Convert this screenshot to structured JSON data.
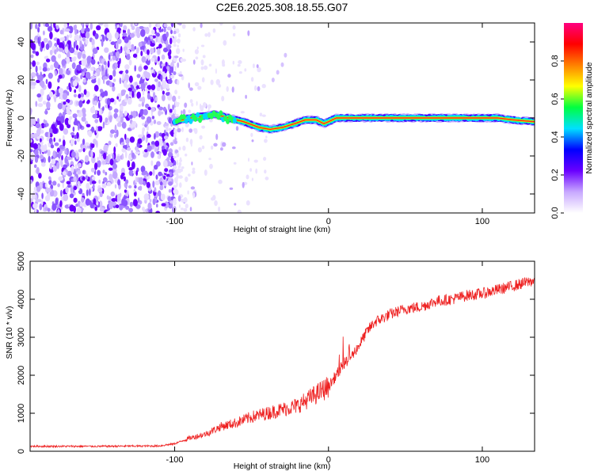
{
  "title": "C2E6.2025.308.18.55.G07",
  "chart_data": [
    {
      "type": "heatmap",
      "name": "spectrogram",
      "xlabel": "Height of straight line (km)",
      "ylabel": "Frequency (Hz)",
      "xlim": [
        -194,
        134
      ],
      "ylim": [
        -50,
        50
      ],
      "xticks": [
        -100,
        0,
        100
      ],
      "xtick_labels": [
        "-100",
        "0",
        "100"
      ],
      "yticks": [
        -40,
        -20,
        0,
        20,
        40
      ],
      "ytick_labels": [
        "-40",
        "-20",
        "0",
        "20",
        "40"
      ],
      "noise_region_km": [
        -194,
        -100
      ],
      "ridge": {
        "x": [
          -100,
          -90,
          -80,
          -74,
          -65,
          -55,
          -45,
          -38,
          -30,
          -22,
          -15,
          -8,
          -3,
          0,
          5,
          15,
          30,
          60,
          90,
          110,
          120,
          134
        ],
        "y": [
          -2,
          0,
          1,
          2,
          0,
          -2,
          -5,
          -6,
          -5,
          -3,
          -1,
          -1,
          -3,
          -2,
          0,
          0,
          0,
          0,
          0,
          0,
          -1,
          -2
        ]
      },
      "colorbar": {
        "label": "Normalized spectral amplitude",
        "ticks": [
          0.0,
          0.2,
          0.4,
          0.6,
          0.8
        ],
        "tick_labels": [
          "0.0",
          "0.2",
          "0.4",
          "0.6",
          "0.8"
        ],
        "range": [
          0,
          1
        ],
        "colors": [
          "#ffffff",
          "#c8a8ff",
          "#6a00ff",
          "#0000ff",
          "#00e0ff",
          "#00ff40",
          "#ffff00",
          "#ff8000",
          "#ff0000",
          "#ff0080"
        ]
      }
    },
    {
      "type": "line",
      "name": "snr",
      "xlabel": "Height of straight line (km)",
      "ylabel": "SNR (10 * v/v)",
      "xlim": [
        -194,
        134
      ],
      "ylim": [
        0,
        5000
      ],
      "xticks": [
        -100,
        0,
        100
      ],
      "xtick_labels": [
        "-100",
        "0",
        "100"
      ],
      "yticks": [
        0,
        1000,
        2000,
        3000,
        4000,
        5000
      ],
      "ytick_labels": [
        "0",
        "1000",
        "2000",
        "3000",
        "4000",
        "5000"
      ],
      "color": "#ee2222",
      "x": [
        -194,
        -150,
        -110,
        -100,
        -90,
        -80,
        -70,
        -60,
        -50,
        -40,
        -30,
        -20,
        -10,
        0,
        5,
        10,
        15,
        20,
        25,
        30,
        40,
        50,
        60,
        70,
        80,
        90,
        100,
        110,
        120,
        134
      ],
      "y": [
        130,
        130,
        140,
        200,
        350,
        450,
        650,
        750,
        900,
        1000,
        1100,
        1200,
        1450,
        1700,
        2000,
        2300,
        2500,
        2800,
        3150,
        3400,
        3600,
        3750,
        3800,
        3950,
        4000,
        4100,
        4150,
        4250,
        4350,
        4500
      ]
    }
  ]
}
